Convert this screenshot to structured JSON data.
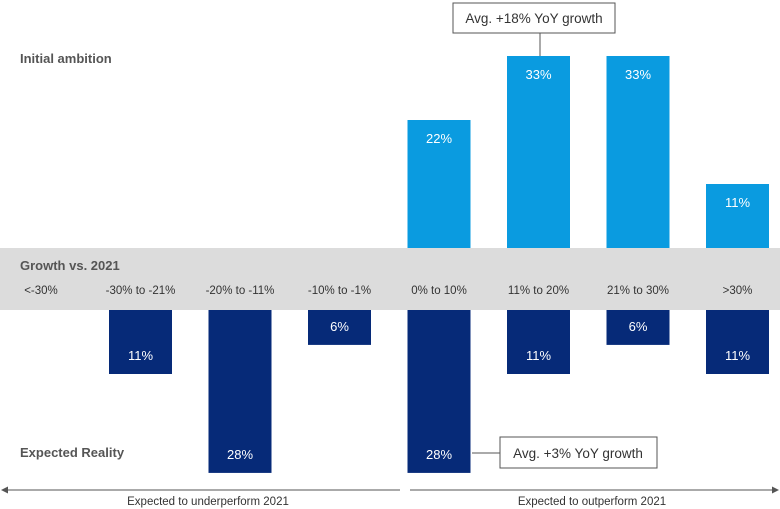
{
  "chart_data": {
    "type": "bar",
    "title": "",
    "categories": [
      "<-30%",
      "-30% to -21%",
      "-20% to -11%",
      "-10% to -1%",
      "0% to 10%",
      "11% to 20%",
      "21% to 30%",
      ">30%"
    ],
    "band_label": "Growth vs. 2021",
    "series": [
      {
        "name": "Initial ambition",
        "direction": "up",
        "color": "#0a9be0",
        "values": [
          0,
          0,
          0,
          0,
          22,
          33,
          33,
          11
        ],
        "labels": [
          "",
          "",
          "",
          "",
          "22%",
          "33%",
          "33%",
          "11%"
        ],
        "annotation": "Avg. +18% YoY growth"
      },
      {
        "name": "Expected Reality",
        "direction": "down",
        "color": "#062a78",
        "values": [
          0,
          11,
          28,
          6,
          28,
          11,
          6,
          11
        ],
        "labels": [
          "",
          "11%",
          "28%",
          "6%",
          "28%",
          "11%",
          "6%",
          "11%"
        ],
        "annotation": "Avg. +3% YoY growth"
      }
    ],
    "ylim": [
      0,
      35
    ],
    "ranges": {
      "left": "Expected to underperform 2021",
      "right": "Expected to outperform 2021"
    }
  }
}
